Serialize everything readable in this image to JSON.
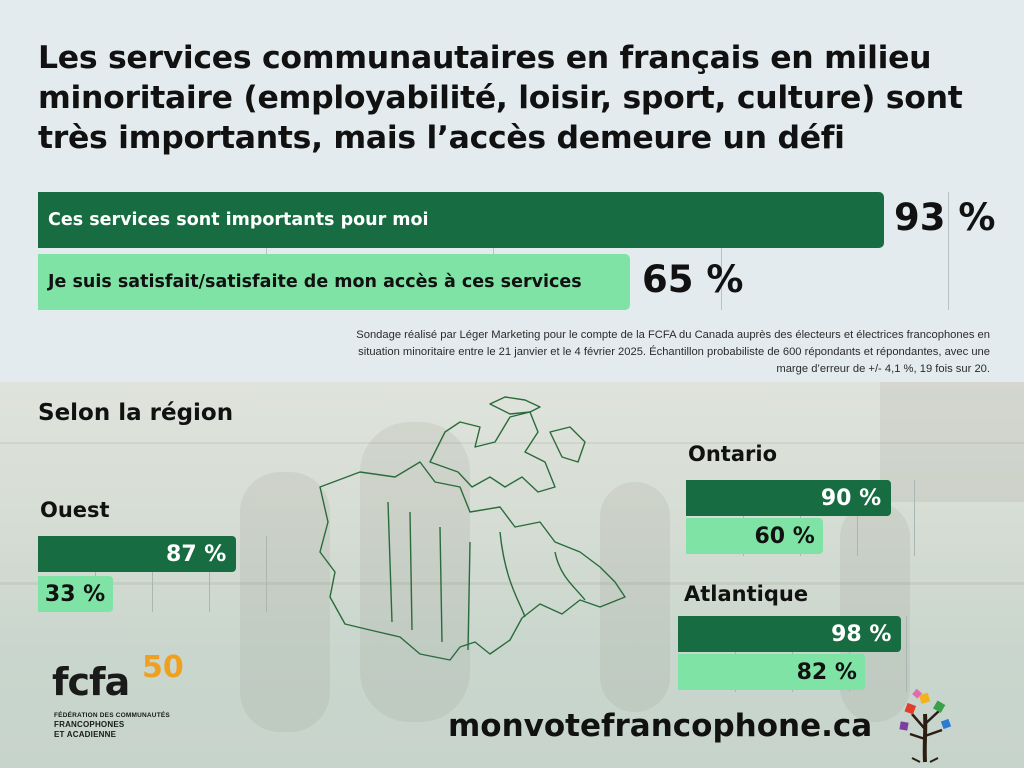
{
  "title": "Les services communautaires en français en milieu minoritaire (employabilité, loisir, sport, culture) sont très importants, mais l’accès demeure un défi",
  "note": "Sondage réalisé par Léger Marketing pour le compte de la FCFA du Canada auprès des électeurs et électrices francophones en situation minoritaire entre le 21 janvier et le 4 février 2025. Échantillon probabiliste de 600 répondants et répondantes, avec une marge d’erreur de +/- 4,1 %, 19 fois sur 20.",
  "region_title": "Selon la région",
  "website": "monvotefrancophone.ca",
  "logo": {
    "word": "fcfa",
    "anniversary": "50",
    "line1": "FÉDÉRATION DES COMMUNAUTÉS",
    "line2": "FRANCOPHONES",
    "line3": "ET ACADIENNE"
  },
  "colors": {
    "dark_green": "#176d41",
    "light_green": "#7fe3a5",
    "panel": "#e3ebee"
  },
  "chart_data": [
    {
      "type": "bar",
      "orientation": "horizontal",
      "categories": [
        "Ces services sont importants pour moi",
        "Je suis satisfait/satisfaite de mon accès à ces services"
      ],
      "values": [
        93,
        65
      ],
      "value_labels": [
        "93 %",
        "65 %"
      ],
      "xlim": [
        0,
        100
      ]
    },
    {
      "type": "bar",
      "orientation": "horizontal",
      "title": "Selon la région",
      "groups": [
        {
          "region": "Ouest",
          "values": [
            87,
            33
          ],
          "labels": [
            "87 %",
            "33 %"
          ]
        },
        {
          "region": "Ontario",
          "values": [
            90,
            60
          ],
          "labels": [
            "90 %",
            "60 %"
          ]
        },
        {
          "region": "Atlantique",
          "values": [
            98,
            82
          ],
          "labels": [
            "98 %",
            "82 %"
          ]
        }
      ],
      "xlim": [
        0,
        100
      ]
    }
  ]
}
